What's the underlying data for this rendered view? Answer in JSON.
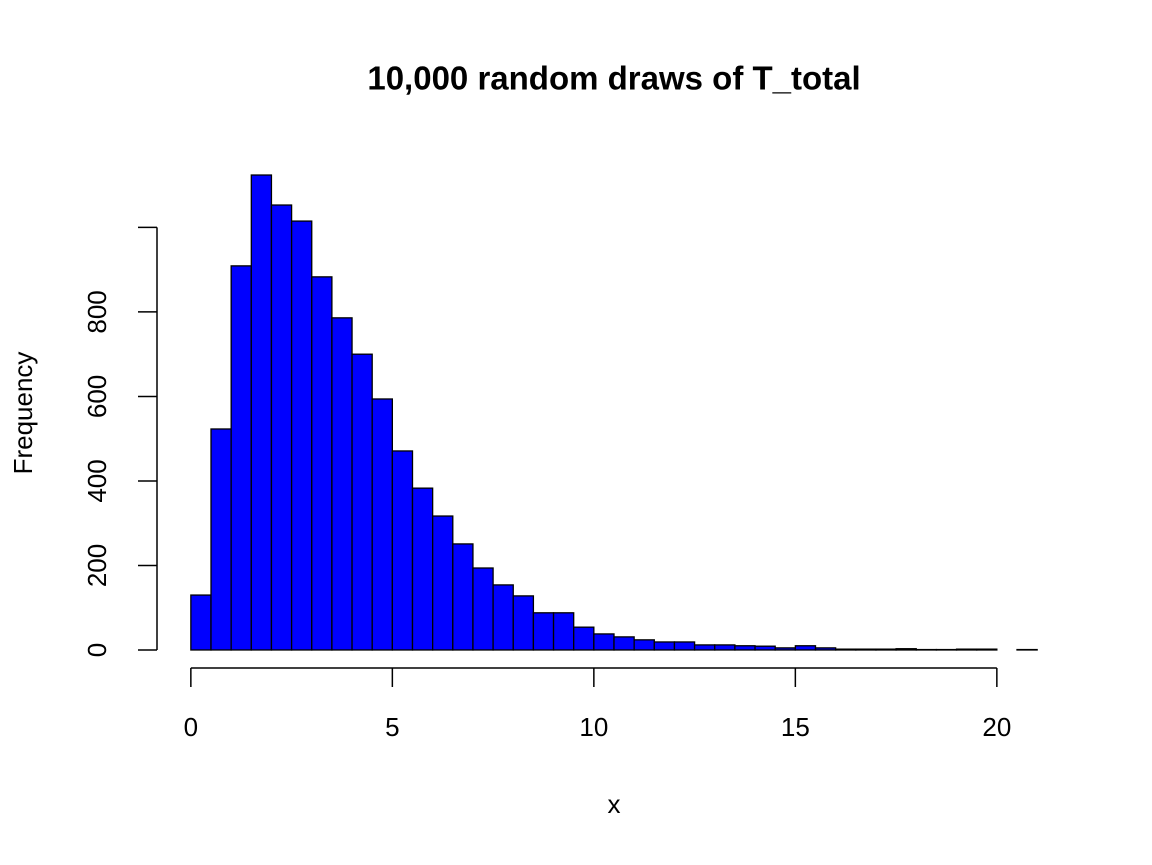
{
  "chart_data": {
    "type": "histogram",
    "title": "10,000 random draws of T_total",
    "x_label": "x",
    "y_label": "Frequency",
    "bins": [
      0,
      0.5,
      1,
      1.5,
      2,
      2.5,
      3,
      3.5,
      4,
      4.5,
      5,
      5.5,
      6,
      6.5,
      7,
      7.5,
      8,
      8.5,
      9,
      9.5,
      10,
      10.5,
      11,
      11.5,
      12,
      12.5,
      13,
      13.5,
      14,
      14.5,
      15,
      15.5,
      16,
      16.5,
      17,
      17.5,
      18,
      18.5,
      19,
      19.5,
      20,
      20.5,
      21
    ],
    "values": [
      130,
      523,
      909,
      1124,
      1053,
      1015,
      883,
      786,
      700,
      594,
      471,
      383,
      317,
      251,
      194,
      154,
      128,
      88,
      88,
      54,
      38,
      31,
      24,
      19,
      19,
      12,
      12,
      10,
      9,
      5,
      10,
      5,
      2,
      2,
      2,
      3,
      1,
      1,
      2,
      2,
      0,
      1
    ],
    "color": "#0000ff",
    "xlim": [
      -0.84,
      21.84
    ],
    "ylim": [
      -45,
      1169
    ],
    "xticks": [
      0,
      5,
      10,
      15,
      20
    ],
    "yticks": [
      0,
      200,
      400,
      600,
      800
    ]
  }
}
